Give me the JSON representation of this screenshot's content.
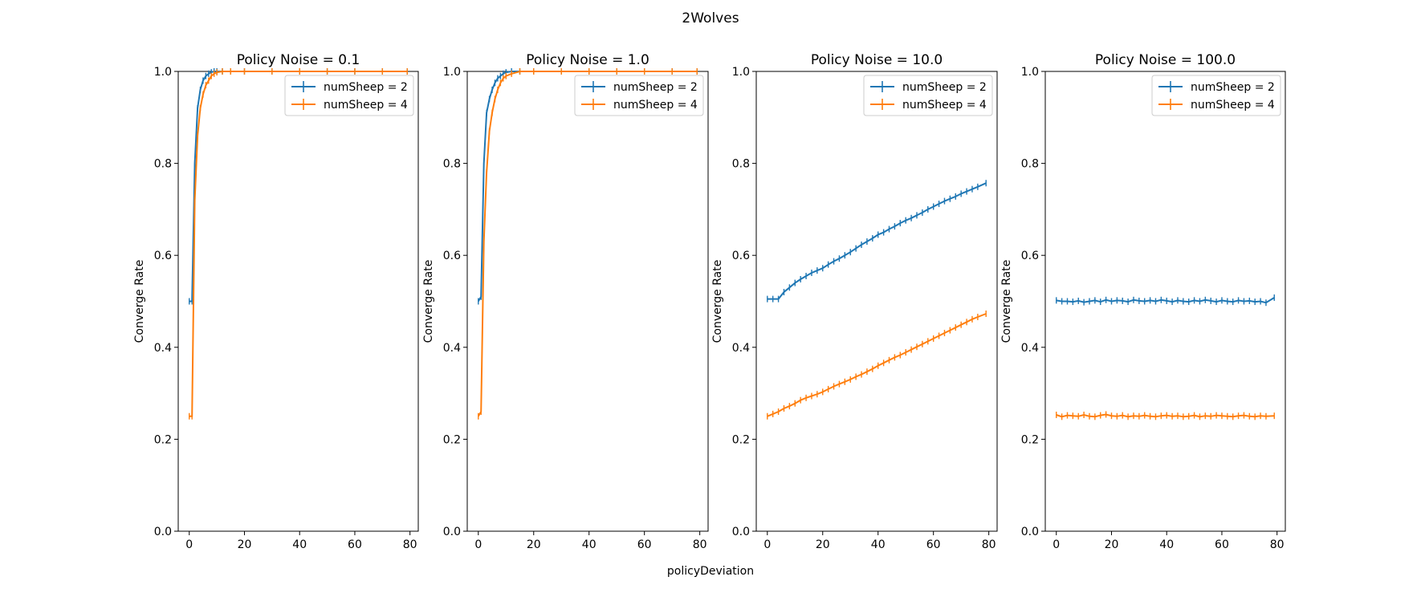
{
  "figure": {
    "suptitle": "2Wolves",
    "xlabel": "policyDeviation"
  },
  "chart_data": [
    {
      "type": "line",
      "title": "Policy Noise = 0.1",
      "xlabel": "",
      "ylabel": "Converge Rate",
      "xlim": [
        -4,
        83
      ],
      "ylim": [
        0,
        1.0
      ],
      "xticks": [
        0,
        20,
        40,
        60,
        80
      ],
      "yticks": [
        0.0,
        0.2,
        0.4,
        0.6,
        0.8,
        1.0
      ],
      "legend": "top-right",
      "series": [
        {
          "name": "numSheep = 2",
          "color": "#1f77b4",
          "x": [
            0,
            1,
            2,
            3,
            4,
            5,
            6,
            7,
            8,
            9,
            10,
            12,
            15,
            20,
            30,
            40,
            50,
            60,
            70,
            79
          ],
          "y": [
            0.5,
            0.5,
            0.8,
            0.92,
            0.96,
            0.98,
            0.99,
            0.995,
            0.998,
            1.0,
            1.0,
            1.0,
            1.0,
            1.0,
            1.0,
            1.0,
            1.0,
            1.0,
            1.0,
            1.0
          ]
        },
        {
          "name": "numSheep = 4",
          "color": "#ff7f0e",
          "x": [
            0,
            1,
            2,
            3,
            4,
            5,
            6,
            7,
            8,
            9,
            10,
            12,
            15,
            20,
            30,
            40,
            50,
            60,
            70,
            79
          ],
          "y": [
            0.25,
            0.25,
            0.72,
            0.86,
            0.92,
            0.95,
            0.97,
            0.98,
            0.99,
            0.995,
            0.998,
            1.0,
            1.0,
            1.0,
            1.0,
            1.0,
            1.0,
            1.0,
            1.0,
            1.0
          ]
        }
      ]
    },
    {
      "type": "line",
      "title": "Policy Noise = 1.0",
      "xlabel": "",
      "ylabel": "Converge Rate",
      "xlim": [
        -4,
        83
      ],
      "ylim": [
        0,
        1.0
      ],
      "xticks": [
        0,
        20,
        40,
        60,
        80
      ],
      "yticks": [
        0.0,
        0.2,
        0.4,
        0.6,
        0.8,
        1.0
      ],
      "legend": "top-right",
      "series": [
        {
          "name": "numSheep = 2",
          "color": "#1f77b4",
          "x": [
            0,
            1,
            2,
            3,
            4,
            5,
            6,
            7,
            8,
            9,
            10,
            12,
            15,
            20,
            30,
            40,
            50,
            60,
            70,
            79
          ],
          "y": [
            0.5,
            0.51,
            0.8,
            0.91,
            0.94,
            0.96,
            0.975,
            0.985,
            0.99,
            0.995,
            0.998,
            1.0,
            1.0,
            1.0,
            1.0,
            1.0,
            1.0,
            1.0,
            1.0,
            1.0
          ]
        },
        {
          "name": "numSheep = 4",
          "color": "#ff7f0e",
          "x": [
            0,
            1,
            2,
            3,
            4,
            5,
            6,
            7,
            8,
            9,
            10,
            12,
            15,
            20,
            30,
            40,
            50,
            60,
            70,
            79
          ],
          "y": [
            0.25,
            0.26,
            0.63,
            0.78,
            0.87,
            0.91,
            0.94,
            0.96,
            0.975,
            0.985,
            0.99,
            0.995,
            1.0,
            1.0,
            1.0,
            1.0,
            1.0,
            1.0,
            1.0,
            1.0
          ]
        }
      ]
    },
    {
      "type": "line",
      "title": "Policy Noise = 10.0",
      "xlabel": "",
      "ylabel": "Converge Rate",
      "xlim": [
        -4,
        83
      ],
      "ylim": [
        0,
        1.0
      ],
      "xticks": [
        0,
        20,
        40,
        60,
        80
      ],
      "yticks": [
        0.0,
        0.2,
        0.4,
        0.6,
        0.8,
        1.0
      ],
      "legend": "top-right",
      "series": [
        {
          "name": "numSheep = 2",
          "color": "#1f77b4",
          "x": [
            0,
            2,
            4,
            6,
            8,
            10,
            12,
            14,
            16,
            18,
            20,
            22,
            24,
            26,
            28,
            30,
            32,
            34,
            36,
            38,
            40,
            42,
            44,
            46,
            48,
            50,
            52,
            54,
            56,
            58,
            60,
            62,
            64,
            66,
            68,
            70,
            72,
            74,
            76,
            79
          ],
          "y": [
            0.505,
            0.505,
            0.505,
            0.52,
            0.53,
            0.54,
            0.548,
            0.555,
            0.562,
            0.567,
            0.572,
            0.58,
            0.587,
            0.593,
            0.6,
            0.607,
            0.615,
            0.623,
            0.63,
            0.637,
            0.645,
            0.65,
            0.657,
            0.663,
            0.67,
            0.676,
            0.681,
            0.687,
            0.693,
            0.7,
            0.706,
            0.712,
            0.718,
            0.723,
            0.728,
            0.734,
            0.739,
            0.744,
            0.749,
            0.757
          ]
        },
        {
          "name": "numSheep = 4",
          "color": "#ff7f0e",
          "x": [
            0,
            2,
            4,
            6,
            8,
            10,
            12,
            14,
            16,
            18,
            20,
            22,
            24,
            26,
            28,
            30,
            32,
            34,
            36,
            38,
            40,
            42,
            44,
            46,
            48,
            50,
            52,
            54,
            56,
            58,
            60,
            62,
            64,
            66,
            68,
            70,
            72,
            74,
            76,
            79
          ],
          "y": [
            0.25,
            0.255,
            0.26,
            0.267,
            0.272,
            0.278,
            0.285,
            0.29,
            0.294,
            0.298,
            0.303,
            0.309,
            0.315,
            0.32,
            0.325,
            0.33,
            0.336,
            0.341,
            0.347,
            0.353,
            0.36,
            0.366,
            0.372,
            0.378,
            0.383,
            0.389,
            0.395,
            0.401,
            0.407,
            0.413,
            0.419,
            0.425,
            0.431,
            0.437,
            0.443,
            0.449,
            0.455,
            0.461,
            0.466,
            0.473
          ]
        }
      ]
    },
    {
      "type": "line",
      "title": "Policy Noise = 100.0",
      "xlabel": "",
      "ylabel": "Converge Rate",
      "xlim": [
        -4,
        83
      ],
      "ylim": [
        0,
        1.0
      ],
      "xticks": [
        0,
        20,
        40,
        60,
        80
      ],
      "yticks": [
        0.0,
        0.2,
        0.4,
        0.6,
        0.8,
        1.0
      ],
      "legend": "top-right",
      "series": [
        {
          "name": "numSheep = 2",
          "color": "#1f77b4",
          "x": [
            0,
            2,
            4,
            6,
            8,
            10,
            12,
            14,
            16,
            18,
            20,
            22,
            24,
            26,
            28,
            30,
            32,
            34,
            36,
            38,
            40,
            42,
            44,
            46,
            48,
            50,
            52,
            54,
            56,
            58,
            60,
            62,
            64,
            66,
            68,
            70,
            72,
            74,
            76,
            79
          ],
          "y": [
            0.502,
            0.5,
            0.5,
            0.499,
            0.501,
            0.498,
            0.5,
            0.502,
            0.499,
            0.503,
            0.5,
            0.502,
            0.501,
            0.499,
            0.503,
            0.501,
            0.5,
            0.502,
            0.5,
            0.503,
            0.501,
            0.499,
            0.502,
            0.5,
            0.499,
            0.502,
            0.5,
            0.503,
            0.501,
            0.499,
            0.502,
            0.5,
            0.499,
            0.502,
            0.5,
            0.501,
            0.499,
            0.5,
            0.497,
            0.508
          ]
        },
        {
          "name": "numSheep = 4",
          "color": "#ff7f0e",
          "x": [
            0,
            2,
            4,
            6,
            8,
            10,
            12,
            14,
            16,
            18,
            20,
            22,
            24,
            26,
            28,
            30,
            32,
            34,
            36,
            38,
            40,
            42,
            44,
            46,
            48,
            50,
            52,
            54,
            56,
            58,
            60,
            62,
            64,
            66,
            68,
            70,
            72,
            74,
            76,
            79
          ],
          "y": [
            0.253,
            0.249,
            0.252,
            0.251,
            0.25,
            0.253,
            0.25,
            0.249,
            0.252,
            0.254,
            0.251,
            0.25,
            0.252,
            0.249,
            0.251,
            0.25,
            0.252,
            0.25,
            0.249,
            0.251,
            0.252,
            0.25,
            0.251,
            0.249,
            0.25,
            0.252,
            0.249,
            0.251,
            0.25,
            0.252,
            0.251,
            0.25,
            0.249,
            0.251,
            0.252,
            0.25,
            0.249,
            0.251,
            0.25,
            0.251
          ]
        }
      ]
    }
  ]
}
